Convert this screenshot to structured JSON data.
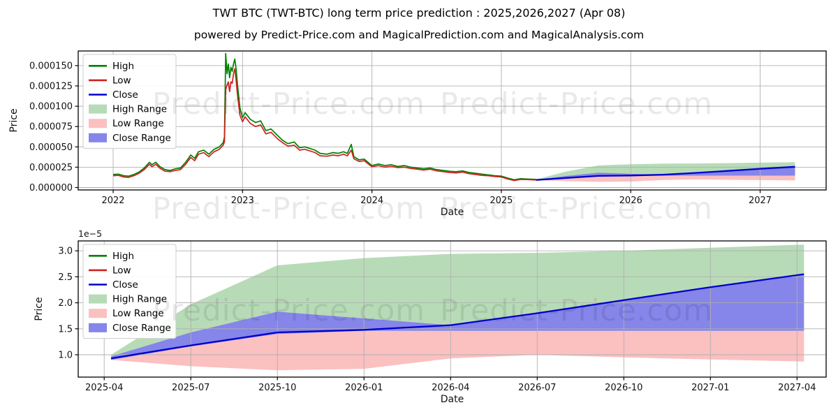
{
  "page": {
    "title": "TWT BTC (TWT-BTC) long term price prediction : 2025,2026,2027 (Apr 08)",
    "subtitle": "powered by Predict-Price.com and MagicalPrediction.com and MagicalAnalysis.com",
    "watermark_text": "Predict-Price.com"
  },
  "colors": {
    "high_line": "#008000",
    "low_line": "#cf2020",
    "close_line": "#0000cd",
    "high_range_fill": "#b7dbb7",
    "low_range_fill": "#fbc0c0",
    "close_range_fill": "#8585ea",
    "grid": "#b0b0b0",
    "frame": "#000000",
    "tick_text": "#111111"
  },
  "chart_data": [
    {
      "type": "line",
      "name": "long-term-history-and-forecast",
      "xlabel": "Date",
      "ylabel": "Price",
      "unit": "1e-6 BTC",
      "xlim": [
        2021.73,
        2027.51
      ],
      "ylim": [
        -3,
        168
      ],
      "x_ticks": {
        "values": [
          2022,
          2023,
          2024,
          2025,
          2026,
          2027
        ],
        "labels": [
          "2022",
          "2023",
          "2024",
          "2025",
          "2026",
          "2027"
        ]
      },
      "y_ticks": {
        "values": [
          0,
          25,
          50,
          75,
          100,
          125,
          150
        ],
        "labels": [
          "0.000000",
          "0.000025",
          "0.000050",
          "0.000075",
          "0.000100",
          "0.000125",
          "0.000150"
        ]
      },
      "legend": [
        "High",
        "Low",
        "Close",
        "High Range",
        "Low Range",
        "Close Range"
      ],
      "history": {
        "t": [
          2022.0,
          2022.04,
          2022.08,
          2022.12,
          2022.16,
          2022.2,
          2022.24,
          2022.28,
          2022.3,
          2022.33,
          2022.36,
          2022.4,
          2022.44,
          2022.48,
          2022.52,
          2022.56,
          2022.6,
          2022.63,
          2022.66,
          2022.7,
          2022.74,
          2022.78,
          2022.82,
          2022.85,
          2022.86,
          2022.87,
          2022.88,
          2022.89,
          2022.9,
          2022.91,
          2022.92,
          2022.93,
          2022.94,
          2022.95,
          2022.96,
          2022.98,
          2023.0,
          2023.02,
          2023.06,
          2023.1,
          2023.14,
          2023.18,
          2023.22,
          2023.27,
          2023.31,
          2023.35,
          2023.4,
          2023.44,
          2023.48,
          2023.52,
          2023.56,
          2023.6,
          2023.65,
          2023.7,
          2023.74,
          2023.78,
          2023.81,
          2023.84,
          2023.86,
          2023.9,
          2023.94,
          2024.0,
          2024.05,
          2024.1,
          2024.15,
          2024.2,
          2024.25,
          2024.3,
          2024.35,
          2024.4,
          2024.45,
          2024.5,
          2024.55,
          2024.6,
          2024.65,
          2024.7,
          2024.75,
          2024.8,
          2024.85,
          2024.9,
          2024.95,
          2025.0,
          2025.05,
          2025.1,
          2025.15,
          2025.2,
          2025.27
        ],
        "high": [
          16,
          16.5,
          14.5,
          14,
          16,
          19,
          24,
          31,
          28,
          31,
          26,
          22,
          21,
          23,
          24,
          31,
          40,
          36,
          44,
          46,
          41,
          47,
          50,
          55,
          62,
          165,
          140,
          152,
          135,
          148,
          143,
          152,
          158,
          146,
          128,
          98,
          86,
          92,
          84,
          80,
          82,
          70,
          72,
          64,
          58,
          54,
          56,
          49,
          50,
          48,
          46,
          42,
          41,
          43,
          42,
          44,
          42,
          53,
          38,
          34,
          35,
          27,
          29,
          27,
          28,
          26,
          27,
          25,
          24,
          23,
          24,
          22,
          21,
          20,
          19.5,
          20.5,
          18.5,
          17.5,
          16.5,
          15.5,
          14.5,
          14,
          11.5,
          9.5,
          10.8,
          10.5,
          10
        ],
        "low": [
          14.5,
          15,
          13,
          12.5,
          14.5,
          17.5,
          22,
          28.5,
          25.5,
          28.5,
          24,
          20,
          19.5,
          21,
          22,
          28.5,
          37,
          33,
          41,
          43,
          38,
          44,
          47,
          52,
          56,
          120,
          126,
          130,
          118,
          130,
          128,
          140,
          146,
          132,
          115,
          89,
          81,
          87,
          79,
          75,
          77,
          66,
          68,
          60,
          55,
          51,
          52,
          46,
          47,
          45,
          43,
          39,
          38.5,
          40,
          39,
          41,
          39,
          46,
          35.5,
          32,
          33,
          25.5,
          27,
          25,
          26,
          24.5,
          25,
          23.5,
          22.5,
          21.5,
          22.5,
          20.5,
          19.5,
          18.5,
          18,
          19,
          17,
          16,
          15,
          14.5,
          13.5,
          13,
          10.5,
          8.5,
          10,
          9.8,
          9.2
        ]
      },
      "forecast": {
        "t": [
          2025.27,
          2025.5,
          2025.75,
          2026.0,
          2026.25,
          2026.5,
          2026.75,
          2027.0,
          2027.27
        ],
        "close": [
          9.3,
          11.8,
          14.3,
          14.8,
          15.7,
          18.0,
          20.5,
          23.0,
          25.5
        ],
        "high_range_top": [
          10.0,
          19.7,
          27.2,
          28.6,
          29.4,
          29.6,
          30.0,
          30.6,
          31.2
        ],
        "close_range_top": [
          9.7,
          14.3,
          18.3,
          17.0,
          15.7,
          18.0,
          20.5,
          23.0,
          25.5
        ],
        "close_range_bottom": [
          9.0,
          11.6,
          14.0,
          14.6,
          14.6,
          14.6,
          14.6,
          14.6,
          14.6
        ],
        "low_range_bottom": [
          9.0,
          7.8,
          7.0,
          7.3,
          9.3,
          10.0,
          9.5,
          9.1,
          8.7
        ]
      }
    },
    {
      "type": "line",
      "name": "forecast-detail-2025-2027",
      "xlabel": "Date",
      "ylabel": "Price",
      "unit": "1e-5 BTC",
      "offset_label": "1e−5",
      "xlim": [
        2025.175,
        2027.334
      ],
      "ylim": [
        0.57,
        3.19
      ],
      "x_ticks": {
        "values": [
          2025.25,
          2025.5,
          2025.75,
          2026.0,
          2026.25,
          2026.5,
          2026.75,
          2027.0,
          2027.25
        ],
        "labels": [
          "2025-04",
          "2025-07",
          "2025-10",
          "2026-01",
          "2026-04",
          "2026-07",
          "2026-10",
          "2027-01",
          "2027-04"
        ]
      },
      "y_ticks": {
        "values": [
          1.0,
          1.5,
          2.0,
          2.5,
          3.0
        ],
        "labels": [
          "1.0",
          "1.5",
          "2.0",
          "2.5",
          "3.0"
        ]
      },
      "legend": [
        "High",
        "Low",
        "Close",
        "High Range",
        "Low Range",
        "Close Range"
      ],
      "forecast": {
        "t": [
          2025.27,
          2025.5,
          2025.75,
          2026.0,
          2026.25,
          2026.5,
          2026.75,
          2027.0,
          2027.27
        ],
        "close": [
          0.93,
          1.18,
          1.43,
          1.48,
          1.57,
          1.8,
          2.05,
          2.3,
          2.55
        ],
        "high_range_top": [
          1.0,
          1.97,
          2.72,
          2.86,
          2.94,
          2.96,
          3.0,
          3.06,
          3.12
        ],
        "close_range_top": [
          0.97,
          1.43,
          1.83,
          1.7,
          1.57,
          1.8,
          2.05,
          2.3,
          2.55
        ],
        "close_range_bottom": [
          0.9,
          1.16,
          1.4,
          1.46,
          1.46,
          1.46,
          1.46,
          1.46,
          1.46
        ],
        "low_range_bottom": [
          0.9,
          0.78,
          0.7,
          0.73,
          0.93,
          1.0,
          0.95,
          0.91,
          0.87
        ]
      }
    }
  ]
}
